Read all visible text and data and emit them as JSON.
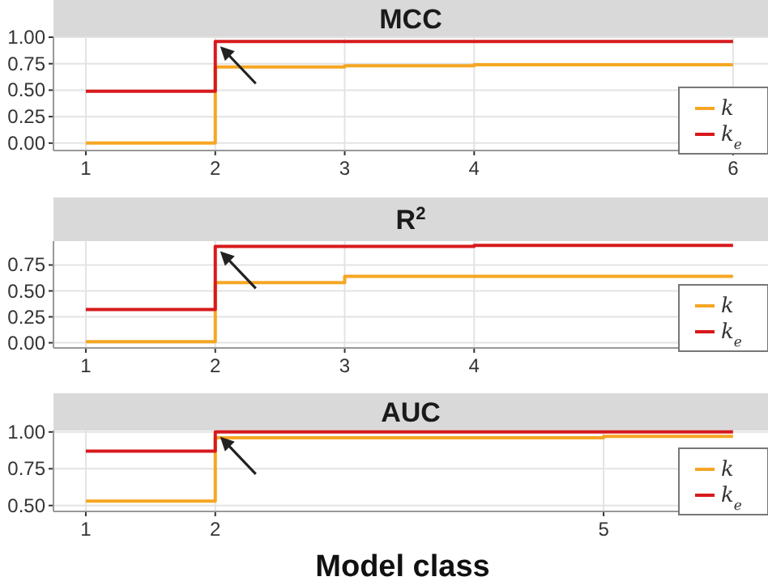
{
  "chart_data": [
    {
      "type": "step",
      "title": "MCC",
      "x": [
        1,
        2,
        3,
        4,
        5,
        6
      ],
      "xlim": [
        0.75,
        6.27
      ],
      "xticks": [
        1,
        2,
        3,
        4,
        6
      ],
      "ylim": [
        -0.07,
        1.0
      ],
      "yticks": [
        {
          "value": 0,
          "label": "0.00"
        },
        {
          "value": 0.25,
          "label": "0.25"
        },
        {
          "value": 0.5,
          "label": "0.50"
        },
        {
          "value": 0.75,
          "label": "0.75"
        },
        {
          "value": 1,
          "label": "1.00"
        }
      ],
      "grid": true,
      "legend": "bottom right",
      "series": [
        {
          "name": "k",
          "color": "#f5a623",
          "values": [
            0,
            0.72,
            0.73,
            0.74,
            0.74,
            0.74
          ]
        },
        {
          "name": "k$_{e}$",
          "color": "#d7191c",
          "values": [
            0.49,
            0.96,
            0.96,
            0.96,
            0.96,
            0.96
          ]
        }
      ]
    },
    {
      "type": "step",
      "title": "R$^{2}$",
      "x": [
        1,
        2,
        3,
        4,
        5,
        6
      ],
      "xlim": [
        0.75,
        6.27
      ],
      "xticks": [
        1,
        2,
        3,
        4
      ],
      "ylim": [
        -0.05,
        0.98
      ],
      "yticks": [
        {
          "value": 0,
          "label": "0.00"
        },
        {
          "value": 0.25,
          "label": "0.25"
        },
        {
          "value": 0.5,
          "label": "0.50"
        },
        {
          "value": 0.75,
          "label": "0.75"
        }
      ],
      "grid": true,
      "legend": "bottom right",
      "series": [
        {
          "name": "k",
          "color": "#f5a623",
          "values": [
            0.01,
            0.58,
            0.64,
            0.64,
            0.64,
            0.64
          ]
        },
        {
          "name": "k$_{e}$",
          "color": "#d7191c",
          "values": [
            0.32,
            0.93,
            0.93,
            0.94,
            0.94,
            0.94
          ]
        }
      ]
    },
    {
      "type": "step",
      "title": "AUC",
      "xlabel": "Model class",
      "x": [
        1,
        2,
        3,
        4,
        5,
        6
      ],
      "xlim": [
        0.75,
        6.27
      ],
      "xticks": [
        1,
        2,
        5
      ],
      "ylim": [
        0.46,
        1.01
      ],
      "yticks": [
        {
          "value": 0.5,
          "label": "0.50"
        },
        {
          "value": 0.75,
          "label": "0.75"
        },
        {
          "value": 1,
          "label": "1.00"
        }
      ],
      "grid": true,
      "legend": "bottom right",
      "series": [
        {
          "name": "k",
          "color": "#f5a623",
          "values": [
            0.53,
            0.96,
            0.96,
            0.96,
            0.97,
            0.97
          ]
        },
        {
          "name": "k$_{e}$",
          "color": "#d7191c",
          "values": [
            0.87,
            1.0,
            1.0,
            1.0,
            1.0,
            1.0
          ]
        }
      ]
    }
  ]
}
